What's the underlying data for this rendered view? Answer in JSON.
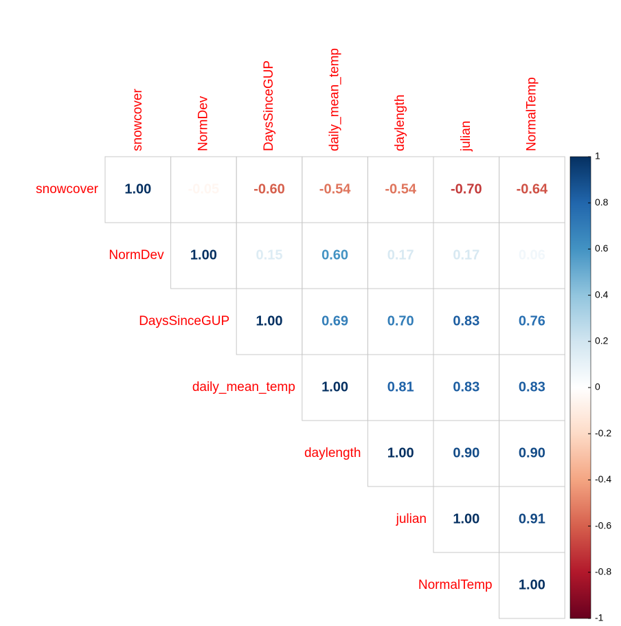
{
  "chart_data": {
    "type": "corrplot",
    "variables": [
      "snowcover",
      "NormDev",
      "DaysSinceGUP",
      "daily_mean_temp",
      "daylength",
      "julian",
      "NormalTemp"
    ],
    "values": [
      [
        1,
        -0.05,
        -0.6,
        -0.54,
        -0.54,
        -0.7,
        -0.64
      ],
      [
        null,
        1,
        0.15,
        0.6,
        0.17,
        0.17,
        0.06
      ],
      [
        null,
        null,
        1,
        0.69,
        0.7,
        0.83,
        0.76
      ],
      [
        null,
        null,
        null,
        1,
        0.81,
        0.83,
        0.83
      ],
      [
        null,
        null,
        null,
        null,
        1,
        0.9,
        0.9
      ],
      [
        null,
        null,
        null,
        null,
        null,
        1,
        0.91
      ],
      [
        null,
        null,
        null,
        null,
        null,
        null,
        1
      ]
    ],
    "value_labels": [
      [
        "1.00",
        "-0.05",
        "-0.60",
        "-0.54",
        "-0.54",
        "-0.70",
        "-0.64"
      ],
      [
        null,
        "1.00",
        "0.15",
        "0.60",
        "0.17",
        "0.17",
        "0.06"
      ],
      [
        null,
        null,
        "1.00",
        "0.69",
        "0.70",
        "0.83",
        "0.76"
      ],
      [
        null,
        null,
        null,
        "1.00",
        "0.81",
        "0.83",
        "0.83"
      ],
      [
        null,
        null,
        null,
        null,
        "1.00",
        "0.90",
        "0.90"
      ],
      [
        null,
        null,
        null,
        null,
        null,
        "1.00",
        "0.91"
      ],
      [
        null,
        null,
        null,
        null,
        null,
        null,
        "1.00"
      ]
    ],
    "colors": [
      "#67001F",
      "#B2182B",
      "#D6604D",
      "#F4A582",
      "#FDDBC7",
      "#FFFFFF",
      "#D1E5F0",
      "#92C5DE",
      "#4393C3",
      "#2166AC",
      "#053061"
    ],
    "label_color": "#ff0000",
    "colorbar_lim": [
      -1,
      1
    ],
    "colorbar_ticks": [
      1,
      0.8,
      0.6,
      0.4,
      0.2,
      0,
      -0.2,
      -0.4,
      -0.6,
      -0.8,
      -1
    ]
  }
}
